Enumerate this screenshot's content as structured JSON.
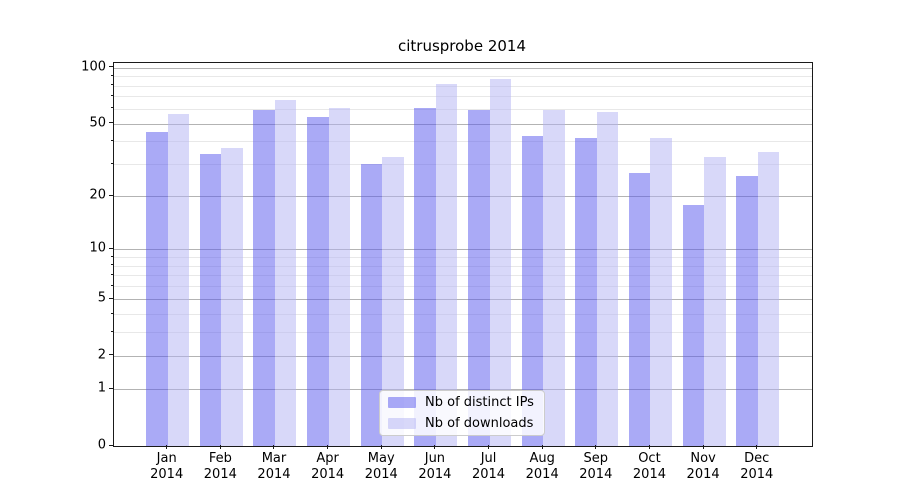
{
  "title": "citrusprobe 2014",
  "legend": {
    "items": [
      {
        "label": "Nb of distinct IPs"
      },
      {
        "label": "Nb of downloads"
      }
    ]
  },
  "colors": {
    "distinct_ips_bar": "rgba(85,85,238,0.5)",
    "downloads_bar": "rgba(177,177,243,0.5)",
    "distinct_ips_flat": "#aaaaf6",
    "downloads_flat": "#d8d8f9",
    "major_grid": "#b3b3b3",
    "minor_grid": "#e8e8e8",
    "axis": "#1a1a1a"
  },
  "y_axis": {
    "tick_values": [
      100,
      50,
      20,
      10,
      5,
      2,
      1,
      0
    ],
    "tick_labels": [
      "100",
      "50",
      "20",
      "10",
      "5",
      "2",
      "1",
      "0"
    ],
    "minor_values": [
      3,
      4,
      6,
      7,
      8,
      9,
      30,
      40,
      60,
      70,
      80,
      90
    ]
  },
  "x_axis": {
    "months": [
      "Jan",
      "Feb",
      "Mar",
      "Apr",
      "May",
      "Jun",
      "Jul",
      "Aug",
      "Sep",
      "Oct",
      "Nov",
      "Dec"
    ],
    "year": "2014"
  },
  "chart_data": {
    "type": "bar",
    "title": "citrusprobe 2014",
    "categories": [
      "Jan 2014",
      "Feb 2014",
      "Mar 2014",
      "Apr 2014",
      "May 2014",
      "Jun 2014",
      "Jul 2014",
      "Aug 2014",
      "Sep 2014",
      "Oct 2014",
      "Nov 2014",
      "Dec 2014"
    ],
    "series": [
      {
        "name": "Nb of distinct IPs",
        "values": [
          45,
          34,
          59,
          54,
          30,
          61,
          59,
          43,
          42,
          27,
          18,
          26
        ]
      },
      {
        "name": "Nb of downloads",
        "values": [
          56,
          37,
          67,
          61,
          33,
          82,
          87,
          59,
          58,
          42,
          33,
          35
        ]
      }
    ],
    "yscale": "symlog (log1p)",
    "yticks": [
      0,
      1,
      2,
      5,
      10,
      20,
      50,
      100
    ],
    "ylim": [
      0,
      106
    ],
    "grid": "horizontal major+minor",
    "legend_position": "lower-center"
  }
}
